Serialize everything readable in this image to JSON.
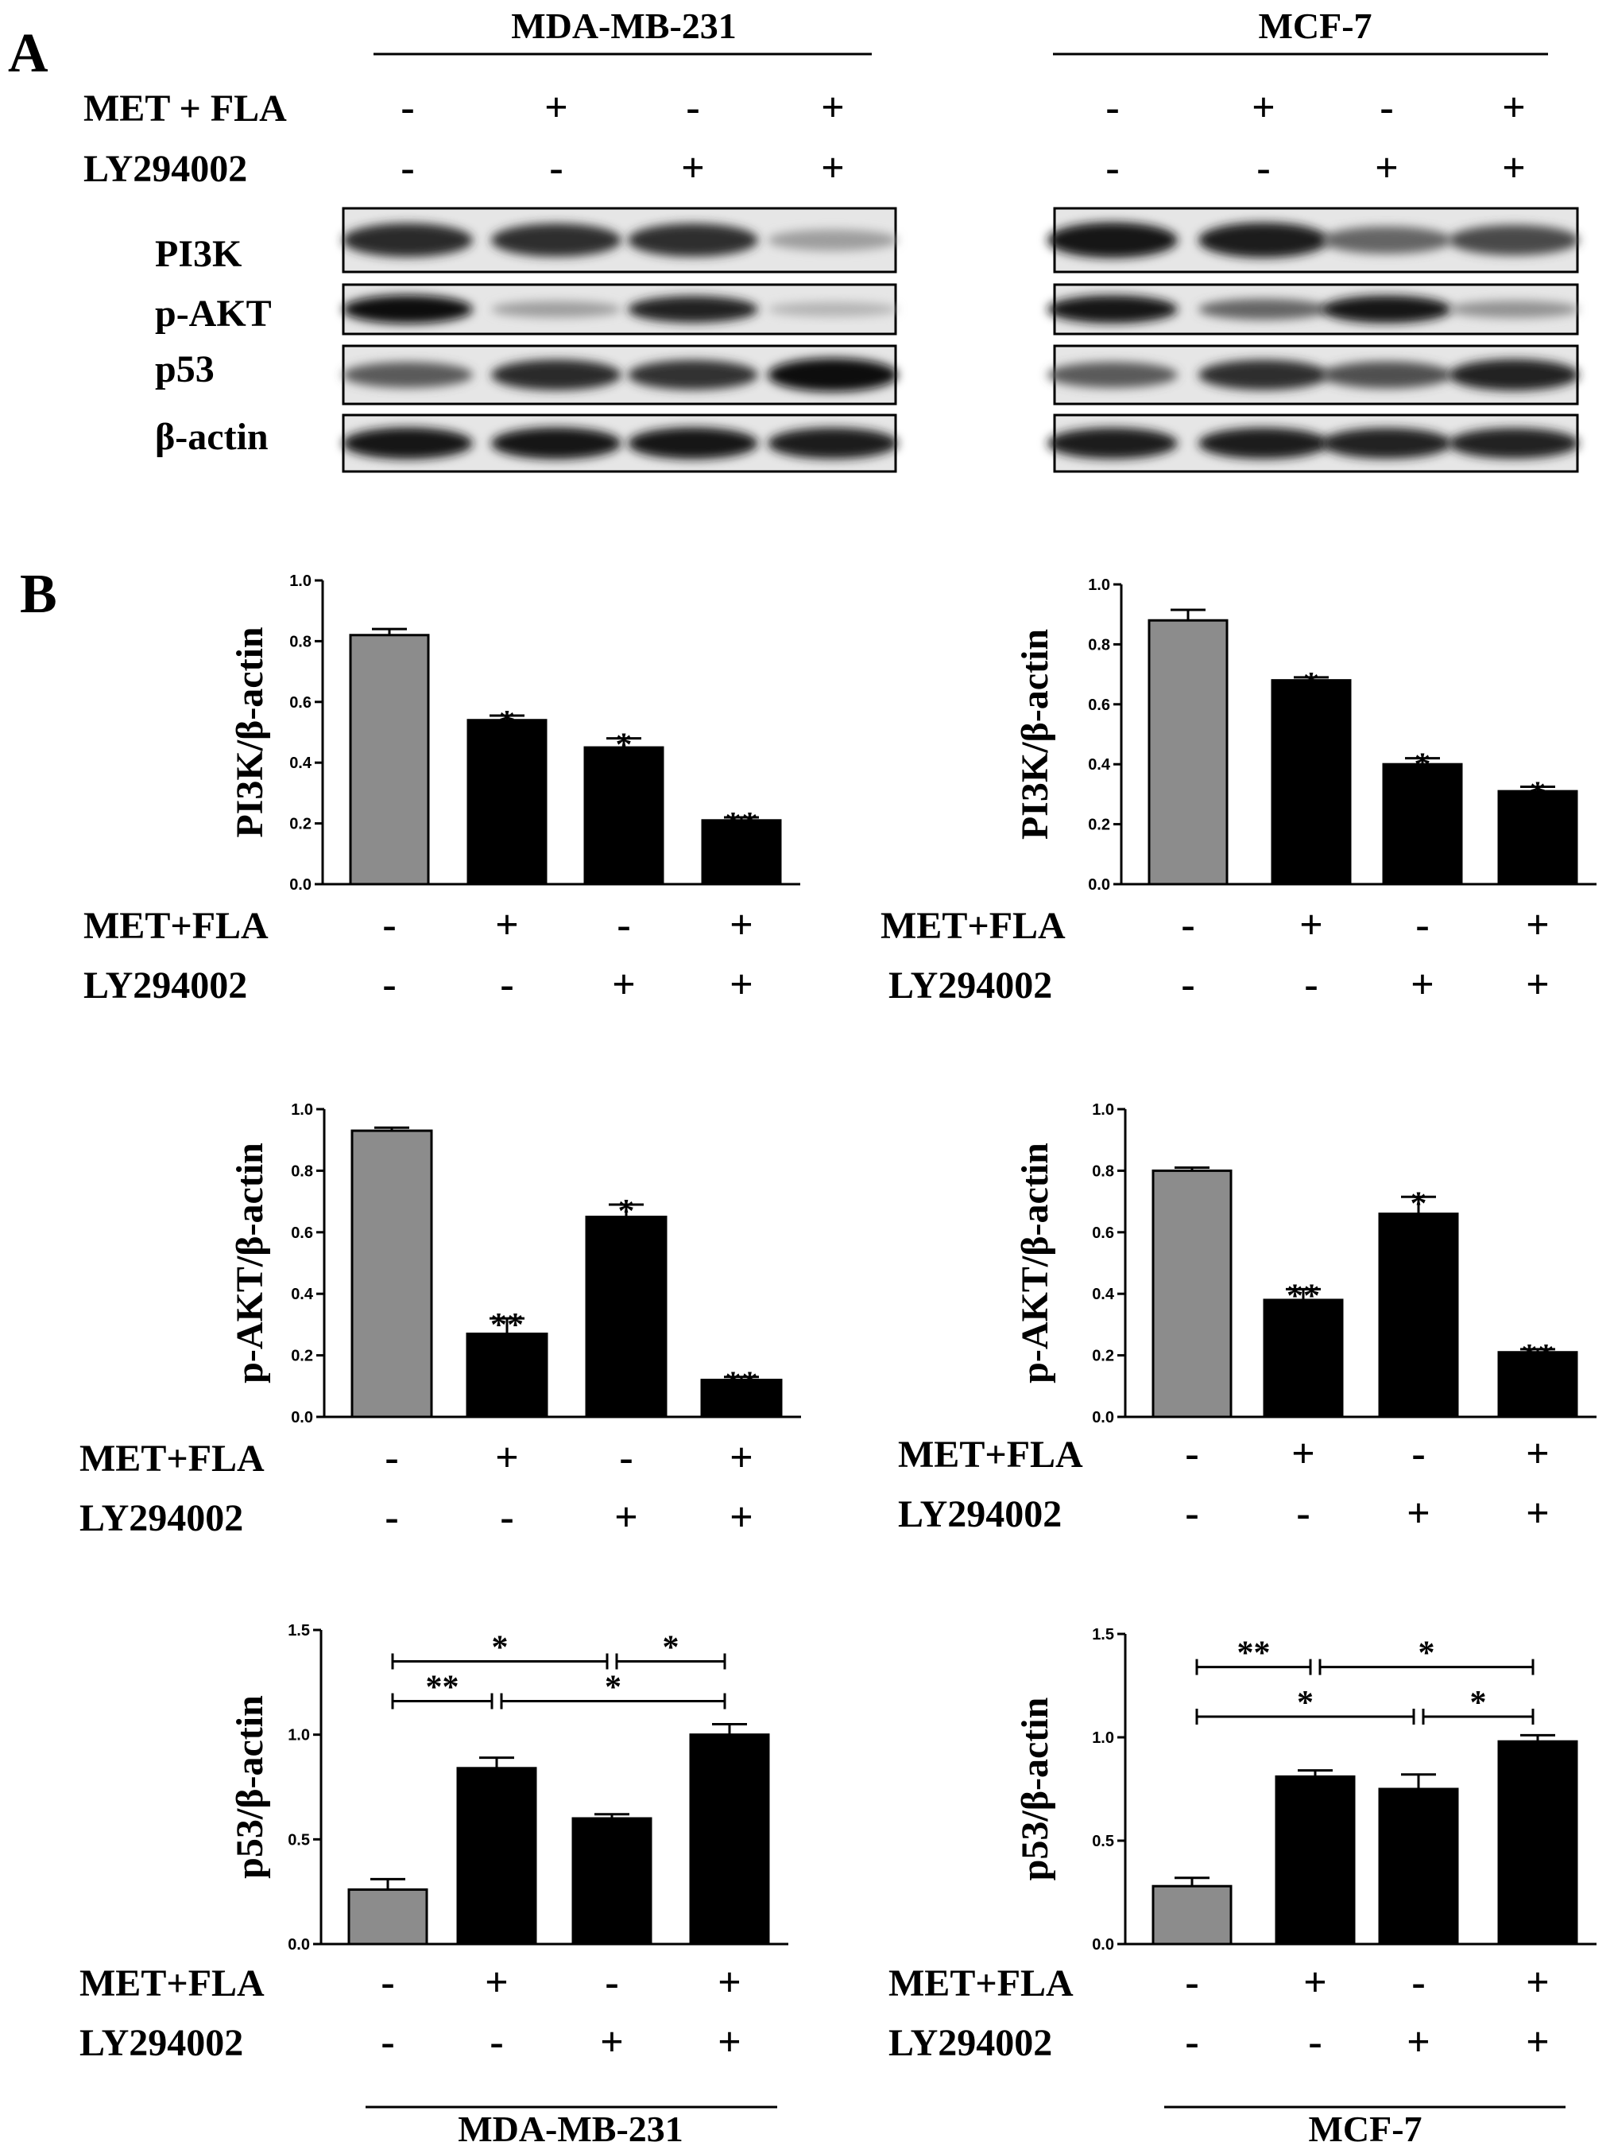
{
  "figure": {
    "panel_a_letter": "A",
    "panel_b_letter": "B",
    "cell_line_1": "MDA-MB-231",
    "cell_line_2": "MCF-7",
    "blot_treatment_1": "MET + FLA",
    "blot_treatment_2": "LY294002",
    "chart_treatment_1": "MET+FLA",
    "chart_treatment_2": "LY294002",
    "blot_labels": [
      "PI3K",
      "p-AKT",
      "p53",
      "β-actin"
    ],
    "met_fla_signs": [
      "-",
      "+",
      "-",
      "+"
    ],
    "ly_signs": [
      "-",
      "-",
      "+",
      "+"
    ]
  },
  "colors": {
    "control_bar": "#8c8c8c",
    "treated_bar": "#000000"
  },
  "blots": {
    "mda": {
      "PI3K": [
        0.82,
        0.8,
        0.8,
        0.3
      ],
      "p-AKT": [
        0.95,
        0.3,
        0.85,
        0.2
      ],
      "p53": [
        0.6,
        0.82,
        0.78,
        0.95
      ],
      "β-actin": [
        0.9,
        0.9,
        0.9,
        0.88
      ]
    },
    "mcf": {
      "PI3K": [
        0.9,
        0.88,
        0.55,
        0.68
      ],
      "p-AKT": [
        0.92,
        0.55,
        0.9,
        0.35
      ],
      "p53": [
        0.6,
        0.8,
        0.65,
        0.85
      ],
      "β-actin": [
        0.88,
        0.88,
        0.86,
        0.85
      ]
    }
  },
  "chart_data": [
    {
      "type": "bar",
      "cell_line": "MDA-MB-231",
      "ylabel": "PI3K/β-actin",
      "ylim": [
        0,
        1.0
      ],
      "yticks": [
        "0.0",
        "0.2",
        "0.4",
        "0.6",
        "0.8",
        "1.0"
      ],
      "values": [
        0.82,
        0.54,
        0.45,
        0.21
      ],
      "errors": [
        0.02,
        0.015,
        0.03,
        0.01
      ],
      "stars": [
        "",
        "*",
        "*",
        "**"
      ],
      "brackets": []
    },
    {
      "type": "bar",
      "cell_line": "MCF-7",
      "ylabel": "PI3K/β-actin",
      "ylim": [
        0,
        1.0
      ],
      "yticks": [
        "0.0",
        "0.2",
        "0.4",
        "0.6",
        "0.8",
        "1.0"
      ],
      "values": [
        0.88,
        0.68,
        0.4,
        0.31
      ],
      "errors": [
        0.035,
        0.01,
        0.02,
        0.015
      ],
      "stars": [
        "",
        "*",
        "*",
        "*"
      ],
      "brackets": []
    },
    {
      "type": "bar",
      "cell_line": "MDA-MB-231",
      "ylabel": "p-AKT/β-actin",
      "ylim": [
        0,
        1.0
      ],
      "yticks": [
        "0.0",
        "0.2",
        "0.4",
        "0.6",
        "0.8",
        "1.0"
      ],
      "values": [
        0.93,
        0.27,
        0.65,
        0.12
      ],
      "errors": [
        0.01,
        0.05,
        0.04,
        0.01
      ],
      "stars": [
        "",
        "**",
        "*",
        "**"
      ],
      "brackets": []
    },
    {
      "type": "bar",
      "cell_line": "MCF-7",
      "ylabel": "p-AKT/β-actin",
      "ylim": [
        0,
        1.0
      ],
      "yticks": [
        "0.0",
        "0.2",
        "0.4",
        "0.6",
        "0.8",
        "1.0"
      ],
      "values": [
        0.8,
        0.38,
        0.66,
        0.21
      ],
      "errors": [
        0.01,
        0.035,
        0.055,
        0.01
      ],
      "stars": [
        "",
        "**",
        "*",
        "**"
      ],
      "brackets": []
    },
    {
      "type": "bar",
      "cell_line": "MDA-MB-231",
      "ylabel": "p53/β-actin",
      "ylim": [
        0,
        1.5
      ],
      "yticks": [
        "0.0",
        "0.5",
        "1.0",
        "1.5"
      ],
      "values": [
        0.26,
        0.84,
        0.6,
        1.0
      ],
      "errors": [
        0.05,
        0.05,
        0.02,
        0.05
      ],
      "stars": [
        "",
        "",
        "",
        ""
      ],
      "brackets": [
        {
          "from": 0,
          "to": 2,
          "y": 1.35,
          "label": "*"
        },
        {
          "from": 2,
          "to": 3,
          "y": 1.35,
          "label": "*"
        },
        {
          "from": 0,
          "to": 1,
          "y": 1.16,
          "label": "**"
        },
        {
          "from": 1,
          "to": 3,
          "y": 1.16,
          "label": "*"
        }
      ]
    },
    {
      "type": "bar",
      "cell_line": "MCF-7",
      "ylabel": "p53/β-actin",
      "ylim": [
        0,
        1.5
      ],
      "yticks": [
        "0.0",
        "0.5",
        "1.0",
        "1.5"
      ],
      "values": [
        0.28,
        0.81,
        0.75,
        0.98
      ],
      "errors": [
        0.04,
        0.03,
        0.07,
        0.03
      ],
      "stars": [
        "",
        "",
        "",
        ""
      ],
      "brackets": [
        {
          "from": 0,
          "to": 1,
          "y": 1.34,
          "label": "**"
        },
        {
          "from": 1,
          "to": 3,
          "y": 1.34,
          "label": "*"
        },
        {
          "from": 0,
          "to": 2,
          "y": 1.1,
          "label": "*"
        },
        {
          "from": 2,
          "to": 3,
          "y": 1.1,
          "label": "*"
        }
      ]
    }
  ]
}
